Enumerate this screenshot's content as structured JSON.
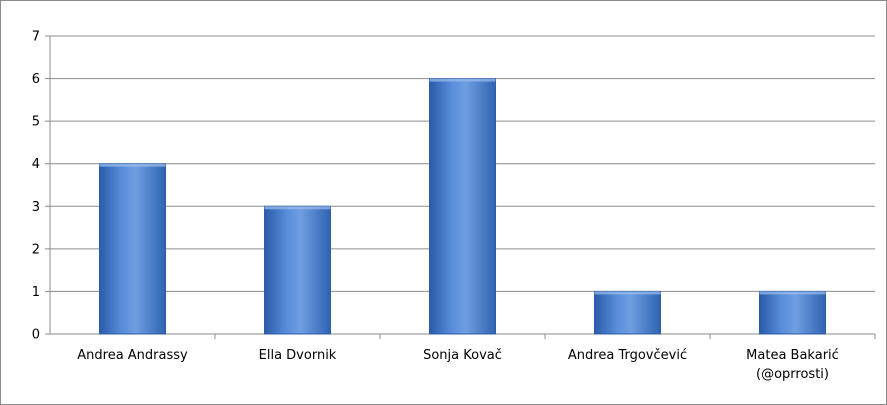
{
  "chart_data": {
    "type": "bar",
    "title": "",
    "xlabel": "",
    "ylabel": "",
    "categories": [
      [
        "Andrea Andrassy"
      ],
      [
        "Ella Dvornik"
      ],
      [
        "Sonja Kovač"
      ],
      [
        "Andrea Trgovčević"
      ],
      [
        "Matea Bakarić",
        "(@oprrosti)"
      ]
    ],
    "values": [
      4,
      3,
      6,
      1,
      1
    ],
    "ylim": [
      0,
      7
    ],
    "yticks": [
      "0",
      "1",
      "2",
      "3",
      "4",
      "5",
      "6",
      "7"
    ],
    "grid": true,
    "legend": "none",
    "colors": {
      "bar_light": "#6f9ee0",
      "bar_mid": "#3f78cc",
      "bar_dark": "#2a5ca8",
      "bar_stroke": "#2c5ea6",
      "grid": "#8c8c8c",
      "axis": "#8c8c8c"
    }
  }
}
